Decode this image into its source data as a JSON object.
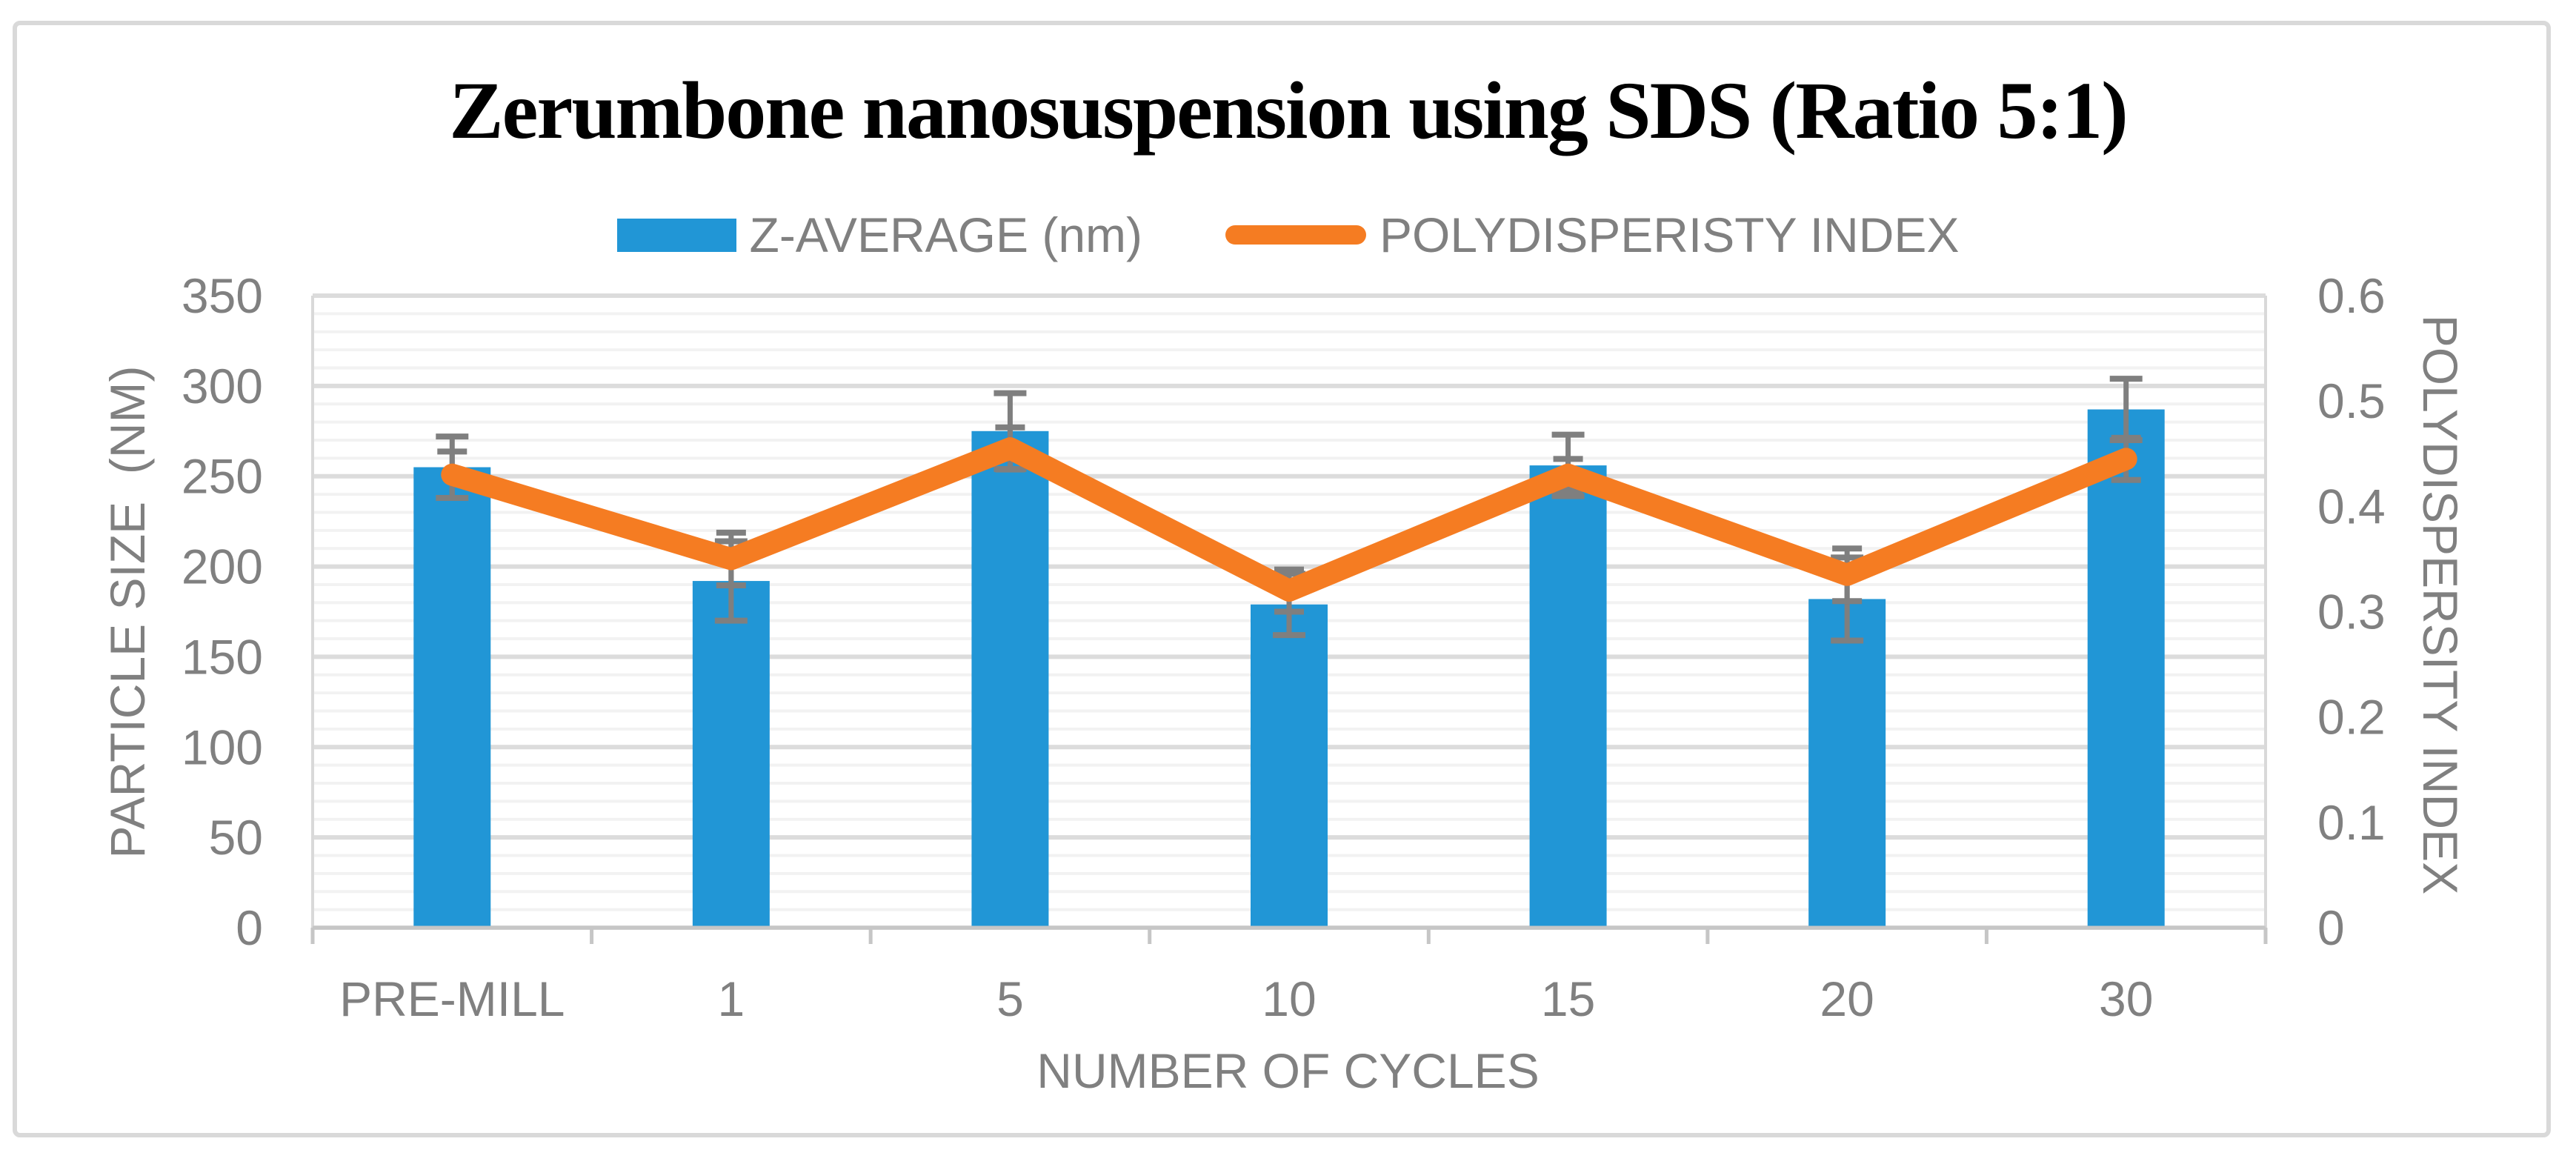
{
  "title": "Zerumbone nanosuspension using SDS (Ratio 5:1)",
  "legend": {
    "bar_label": "Z-AVERAGE (nm)",
    "line_label": "POLYDISPERISTY INDEX"
  },
  "axes": {
    "left_title": "PARTICLE SIZE  (NM)",
    "right_title": "POLYDISPERSITY INDEX",
    "x_title": "NUMBER OF CYCLES"
  },
  "colors": {
    "bar": "#2196D6",
    "line": "#F57C22",
    "error": "#7F7F7F",
    "grid_major": "#DCDCDC",
    "grid_minor": "#F2F2F2",
    "axis_line": "#C6C6C6",
    "plot_edge": "#D9D9D9",
    "text": "#808080",
    "border": "#D9D9D9"
  },
  "chart_data": {
    "type": "bar",
    "subtype": "bar-line-combo",
    "title": "Zerumbone nanosuspension using SDS (Ratio 5:1)",
    "categories": [
      "PRE-MILL",
      "1",
      "5",
      "10",
      "15",
      "20",
      "30"
    ],
    "series": [
      {
        "name": "Z-AVERAGE (nm)",
        "type": "bar",
        "axis": "left",
        "values": [
          255,
          192,
          275,
          179,
          256,
          182,
          287
        ],
        "error_bars": [
          17,
          22,
          21,
          17,
          17,
          23,
          17
        ]
      },
      {
        "name": "POLYDISPERISTY INDEX",
        "type": "line",
        "axis": "right",
        "values": [
          0.43,
          0.35,
          0.455,
          0.32,
          0.43,
          0.335,
          0.445
        ],
        "error_bars": [
          0.022,
          0.025,
          0.02,
          0.02,
          0.015,
          0.025,
          0.02
        ]
      }
    ],
    "left_axis": {
      "label": "PARTICLE SIZE  (NM)",
      "min": 0,
      "max": 350,
      "major_step": 50,
      "minor_step": 10
    },
    "right_axis": {
      "label": "POLYDISPERSITY INDEX",
      "min": 0,
      "max": 0.6,
      "major_step": 0.1
    },
    "x_axis": {
      "label": "NUMBER OF CYCLES"
    },
    "grid": {
      "major": "on",
      "minor": "on"
    },
    "legend_position": "top"
  }
}
